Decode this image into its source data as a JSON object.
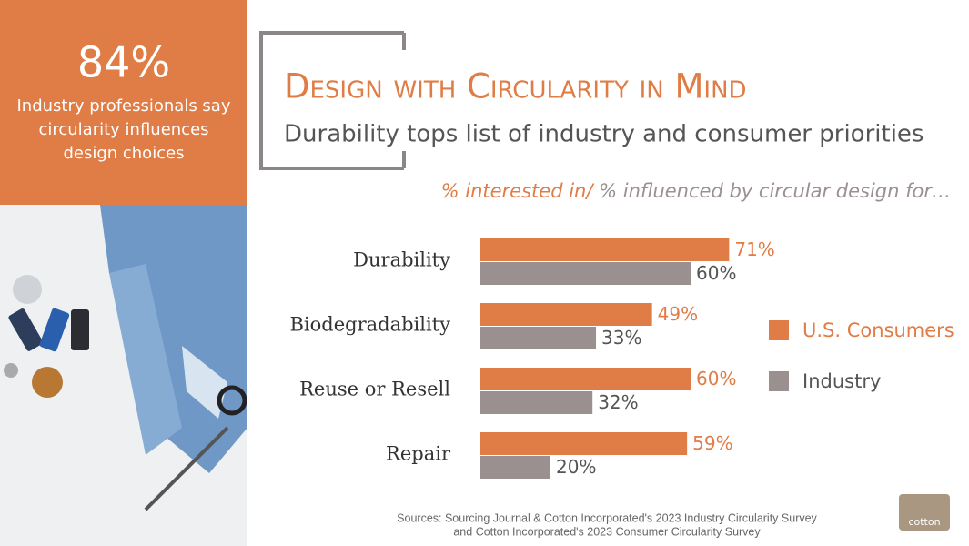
{
  "sidebar": {
    "stat": "84%",
    "text": "Industry professionals say circularity influences design choices"
  },
  "header": {
    "title": "Design with Circularity in Mind",
    "subtitle": "Durability tops list of industry and consumer priorities"
  },
  "chart_data": {
    "type": "bar",
    "orientation": "horizontal",
    "subtitle_parts": [
      "% interested in/",
      " % influenced by circular design for…"
    ],
    "categories": [
      "Durability",
      "Biodegradability",
      "Reuse or Resell",
      "Repair"
    ],
    "series": [
      {
        "name": "U.S. Consumers",
        "color": "#e07c45",
        "values": [
          71,
          49,
          60,
          59
        ],
        "value_labels": [
          "71%",
          "49%",
          "60%",
          "59%"
        ]
      },
      {
        "name": "Industry",
        "color": "#9b9090",
        "values": [
          60,
          33,
          32,
          20
        ],
        "value_labels": [
          "60%",
          "33%",
          "32%",
          "20%"
        ]
      }
    ],
    "xlim": [
      0,
      100
    ],
    "legend": "right"
  },
  "footer": {
    "sources": [
      "Sources: Sourcing Journal & Cotton Incorporated's 2023 Industry Circularity Survey",
      "and Cotton Incorporated's 2023 Consumer Circularity Survey"
    ],
    "logo": "cotton"
  }
}
